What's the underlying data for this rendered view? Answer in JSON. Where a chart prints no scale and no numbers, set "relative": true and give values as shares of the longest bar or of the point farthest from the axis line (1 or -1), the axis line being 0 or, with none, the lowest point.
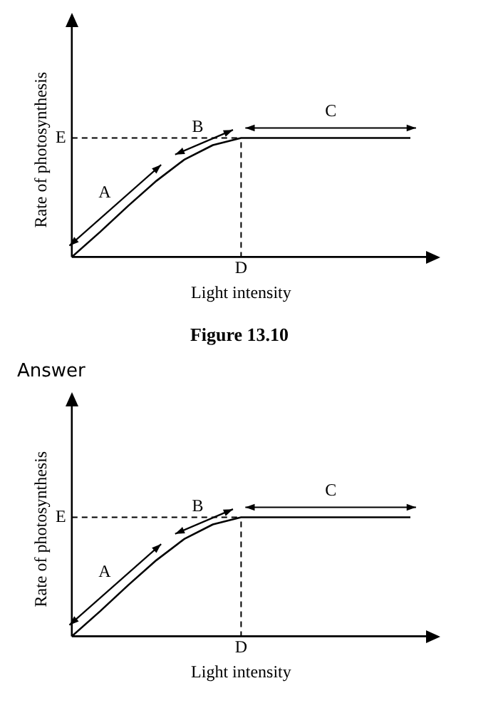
{
  "chart_data": [
    {
      "type": "line",
      "xlabel": "Light intensity",
      "ylabel": "Rate of photosynthesis",
      "categories": [
        null,
        null,
        null,
        null,
        null,
        null,
        null,
        null,
        null,
        null,
        null,
        null,
        null
      ],
      "values": [
        0,
        0.21,
        0.43,
        0.64,
        0.82,
        0.94,
        1,
        1,
        1,
        1,
        1,
        1,
        1
      ],
      "color": "#000000",
      "relative": true,
      "marker": "none",
      "grid": false,
      "legend": false,
      "ref_lines": [
        {
          "axis": "y",
          "value": 1,
          "label": "E",
          "line_style": "dashed"
        }
      ],
      "annotations": [
        "A",
        "B",
        "C",
        "D",
        "Figure 13.10"
      ]
    },
    {
      "type": "line",
      "title": "Answer",
      "xlabel": "Light intensity",
      "ylabel": "Rate of photosynthesis",
      "categories": [
        null,
        null,
        null,
        null,
        null,
        null,
        null,
        null,
        null,
        null,
        null,
        null,
        null
      ],
      "values": [
        0,
        0.21,
        0.43,
        0.64,
        0.82,
        0.94,
        1,
        1,
        1,
        1,
        1,
        1,
        1
      ],
      "color": "#000000",
      "relative": true,
      "marker": "none",
      "grid": false,
      "legend": false,
      "ref_lines": [
        {
          "axis": "y",
          "value": 1,
          "label": "E",
          "line_style": "dashed"
        }
      ],
      "annotations": [
        "A",
        "B",
        "C",
        "D"
      ]
    }
  ]
}
